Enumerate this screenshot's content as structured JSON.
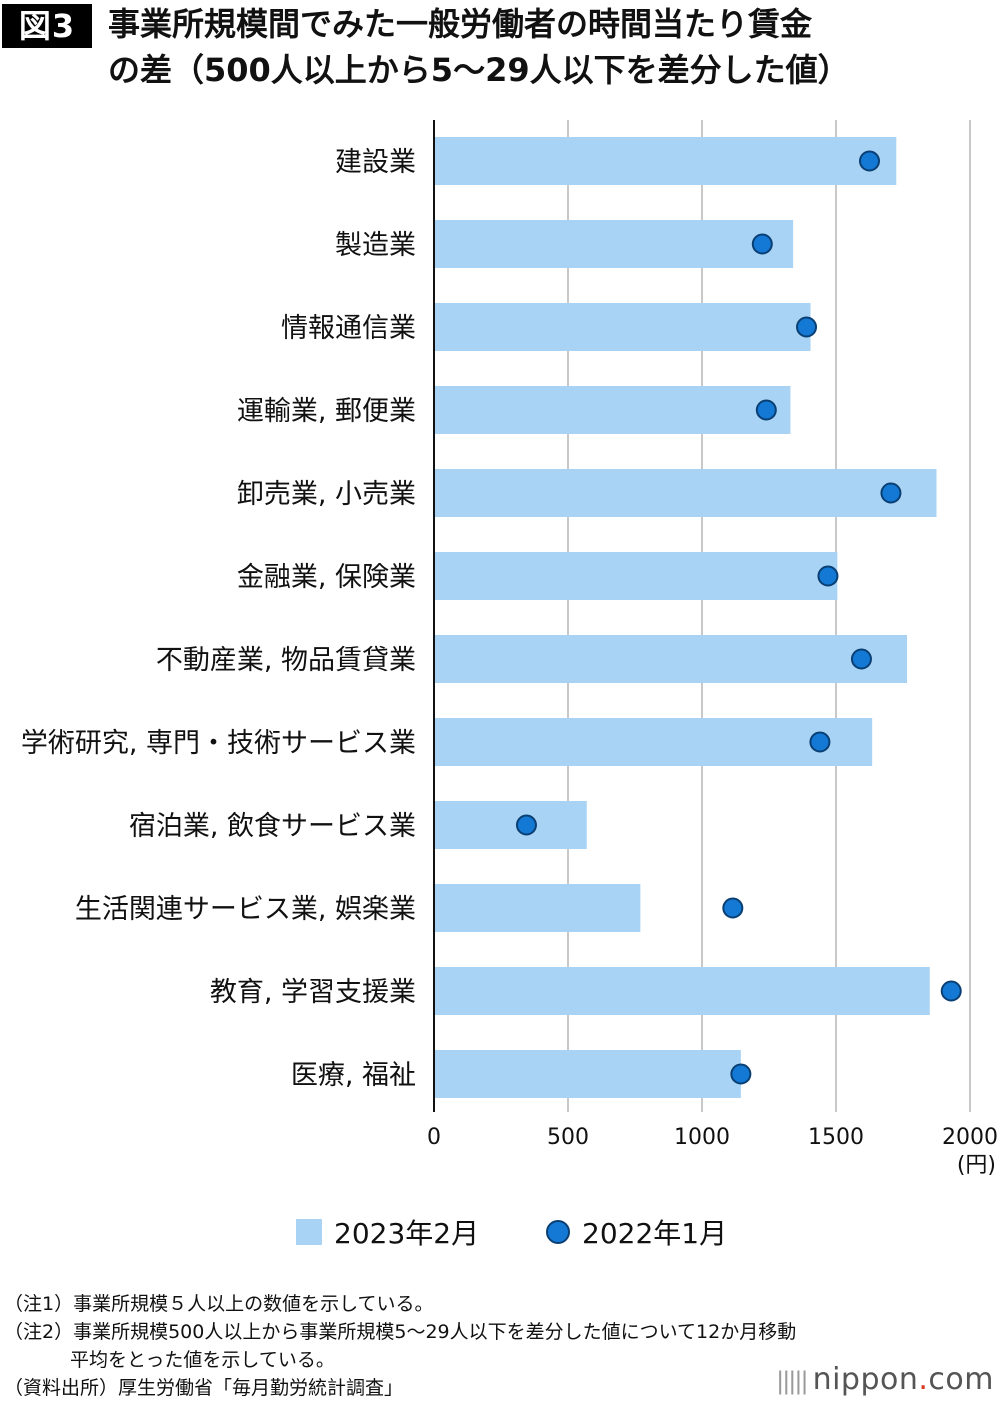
{
  "header": {
    "badge": "図3",
    "title_line1": "事業所規模間でみた一般労働者の時間当たり賃金",
    "title_line2": "の差（500人以上から5〜29人以下を差分した値）"
  },
  "chart_data": {
    "type": "bar",
    "orientation": "horizontal",
    "categories": [
      "建設業",
      "製造業",
      "情報通信業",
      "運輸業, 郵便業",
      "卸売業, 小売業",
      "金融業, 保険業",
      "不動産業, 物品賃貸業",
      "学術研究, 専門・技術サービス業",
      "宿泊業, 飲食サービス業",
      "生活関連サービス業, 娯楽業",
      "教育, 学習支援業",
      "医療, 福祉"
    ],
    "series": [
      {
        "name": "2023年2月",
        "kind": "bar",
        "color": "#a8d3f5",
        "values": [
          1725,
          1340,
          1405,
          1330,
          1875,
          1505,
          1765,
          1635,
          570,
          770,
          1850,
          1145
        ]
      },
      {
        "name": "2022年1月",
        "kind": "dot",
        "color": "#1479d4",
        "values": [
          1625,
          1225,
          1390,
          1240,
          1705,
          1470,
          1595,
          1440,
          345,
          1115,
          1930,
          1145
        ]
      }
    ],
    "xlim": [
      0,
      2000
    ],
    "xticks": [
      0,
      500,
      1000,
      1500,
      2000
    ],
    "xunit": "(円)",
    "grid": true,
    "legend_position": "bottom"
  },
  "legend": {
    "bar_label": "2023年2月",
    "dot_label": "2022年1月"
  },
  "notes": {
    "n1": "（注1）事業所規模５人以上の数値を示している。",
    "n2": "（注2）事業所規模500人以上から事業所規模5〜29人以下を差分した値について12か月移動",
    "n2b": "平均をとった値を示している。",
    "source": "（資料出所）厚生労働省「毎月勤労統計調査」"
  },
  "brand": {
    "name": "nippon",
    "dot": ".",
    "suffix": "com"
  }
}
